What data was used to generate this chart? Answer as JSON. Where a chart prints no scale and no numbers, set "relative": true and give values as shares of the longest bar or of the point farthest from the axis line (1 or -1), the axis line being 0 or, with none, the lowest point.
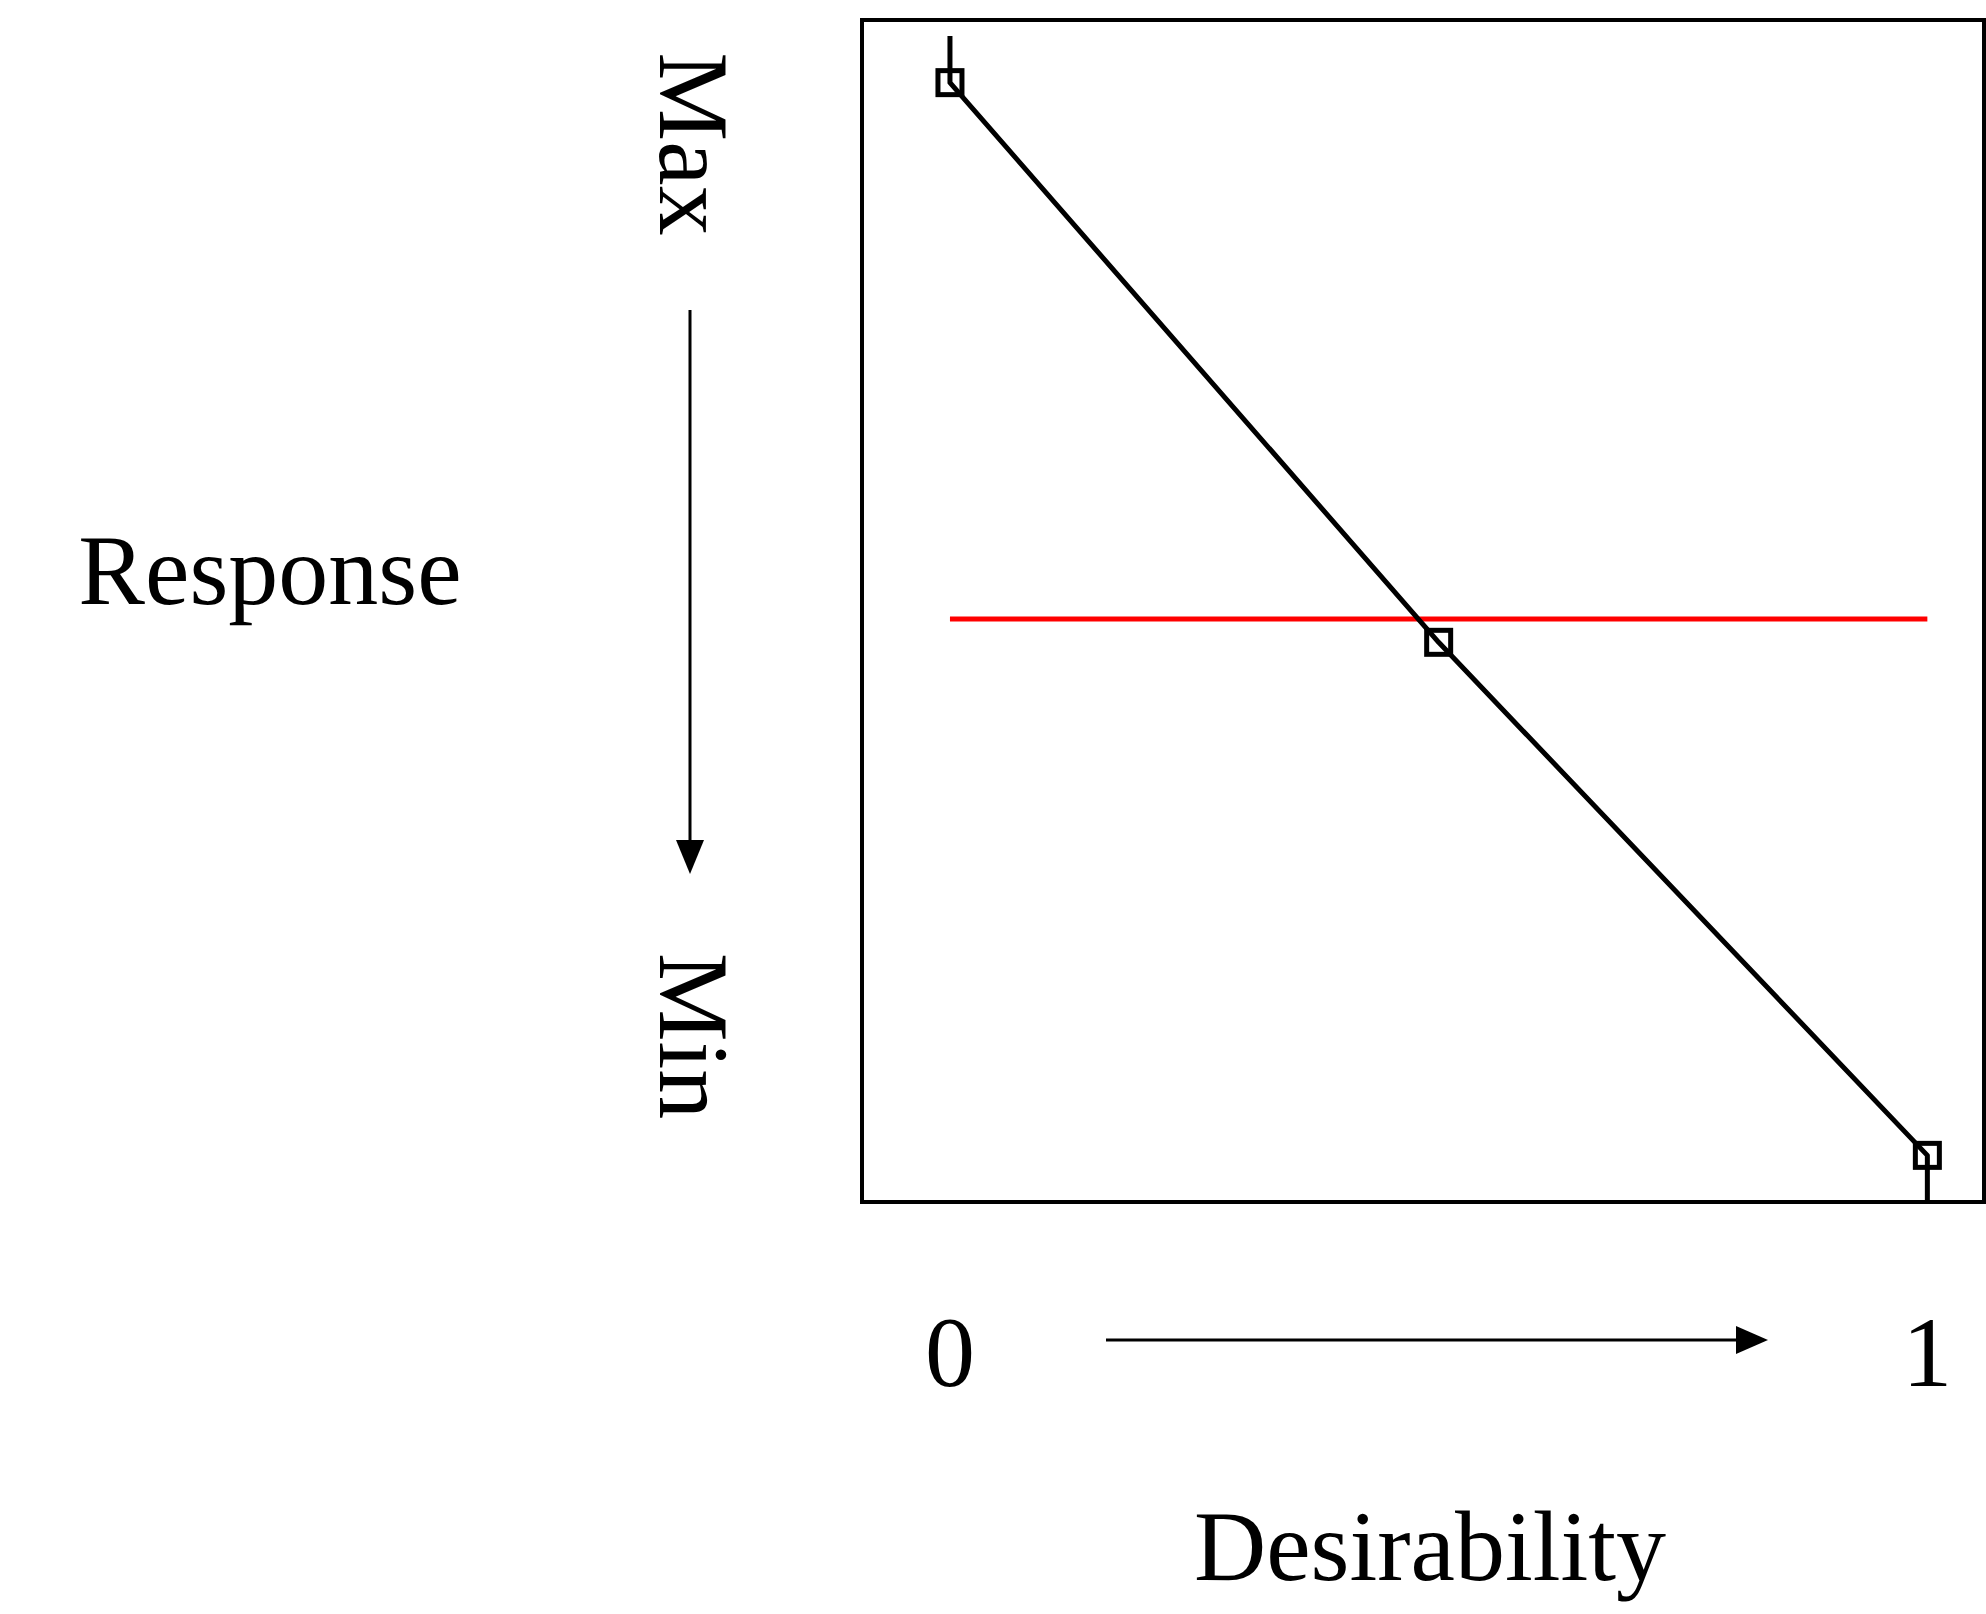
{
  "chart_data": {
    "type": "line",
    "relative": true,
    "xlabel": "Desirability",
    "ylabel": "Response",
    "xlim": [
      -0.09,
      1.06
    ],
    "xticks": [
      0,
      1
    ],
    "series": [
      {
        "x": [
          0,
          0,
          0.5,
          1,
          1
        ],
        "values": [
          1,
          0.96,
          0.48,
          0.04,
          0
        ],
        "color": "#000000",
        "marker": "none"
      },
      {
        "type": "scatter",
        "x": [
          0,
          0.5,
          1
        ],
        "values": [
          0.96,
          0.48,
          0.04
        ],
        "color": "#000000",
        "marker": "square"
      }
    ],
    "ref_lines": [
      {
        "axis": "y",
        "value": 0.5,
        "color": "#ff0000"
      }
    ],
    "annotations": [
      "Max",
      "Min"
    ],
    "grid": false
  }
}
